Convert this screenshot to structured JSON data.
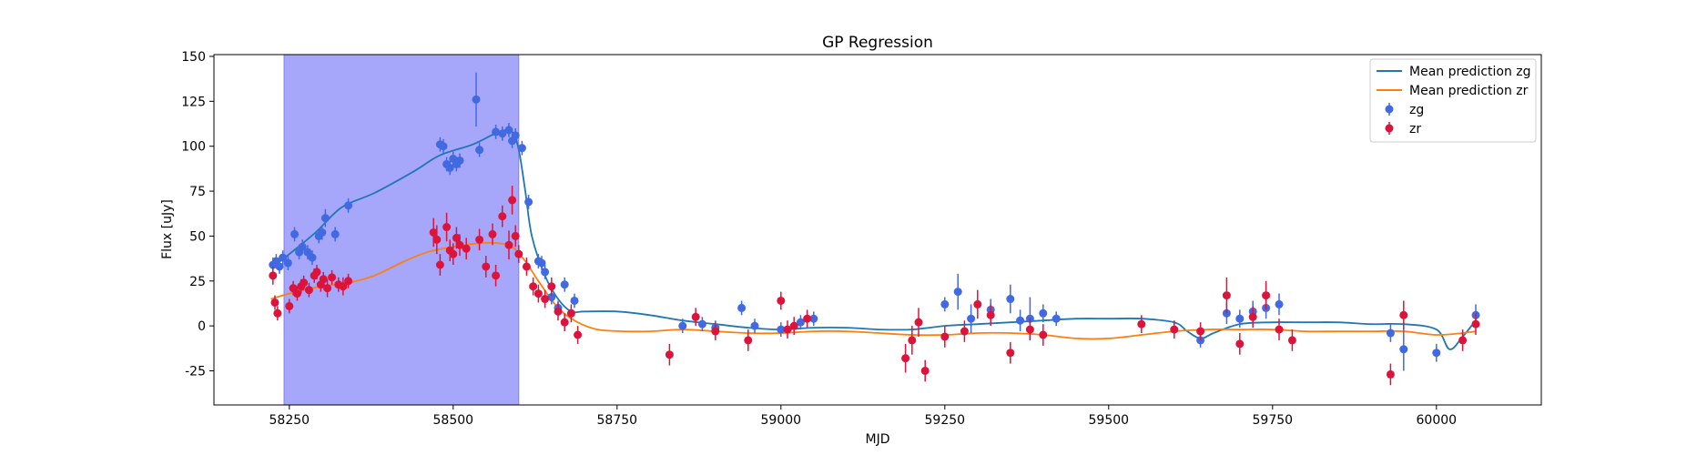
{
  "chart_data": {
    "type": "scatter",
    "title": "GP Regression",
    "xlabel": "MJD",
    "ylabel": "Flux [uJy]",
    "xlim": [
      58135,
      60160
    ],
    "ylim": [
      -44,
      151
    ],
    "xticks": [
      58250,
      58500,
      58750,
      59000,
      59250,
      59500,
      59750,
      60000
    ],
    "yticks": [
      -25,
      0,
      25,
      50,
      75,
      100,
      125,
      150
    ],
    "grid": false,
    "legend_position": "top-right",
    "highlight_span": {
      "x_start": 58242,
      "x_end": 58600,
      "color": "#a6a6fb"
    },
    "series": [
      {
        "name": "Mean prediction zg",
        "kind": "line",
        "color": "#1f77b4",
        "x": [
          58222,
          58250,
          58290,
          58330,
          58380,
          58440,
          58480,
          58530,
          58570,
          58590,
          58600,
          58610,
          58620,
          58640,
          58660,
          58680,
          58700,
          58750,
          58800,
          58850,
          58900,
          58950,
          59000,
          59050,
          59100,
          59150,
          59200,
          59250,
          59300,
          59350,
          59400,
          59450,
          59500,
          59550,
          59600,
          59620,
          59640,
          59660,
          59700,
          59750,
          59800,
          59850,
          59900,
          59950,
          60000,
          60020,
          60040,
          60060
        ],
        "values": [
          32,
          40,
          52,
          66,
          74,
          86,
          95,
          101,
          108,
          108,
          98,
          75,
          50,
          28,
          15,
          8,
          8,
          8,
          6,
          3,
          1,
          -1,
          -2,
          -1,
          -1,
          -2,
          -2,
          0,
          1,
          2,
          3,
          4,
          4,
          4,
          2,
          -3,
          -7,
          -4,
          1,
          2,
          2,
          2,
          1,
          1,
          -2,
          -13,
          -6,
          3
        ]
      },
      {
        "name": "Mean prediction zr",
        "kind": "line",
        "color": "#ff7f0e",
        "x": [
          58222,
          58260,
          58300,
          58340,
          58380,
          58420,
          58460,
          58500,
          58540,
          58570,
          58590,
          58610,
          58630,
          58660,
          58690,
          58720,
          58760,
          58800,
          58850,
          58900,
          58950,
          59000,
          59050,
          59100,
          59150,
          59200,
          59250,
          59300,
          59350,
          59400,
          59450,
          59500,
          59550,
          59600,
          59650,
          59700,
          59750,
          59800,
          59850,
          59900,
          59950,
          60000,
          60040,
          60060
        ],
        "values": [
          15,
          19,
          22,
          24,
          28,
          35,
          41,
          44,
          46,
          46,
          44,
          36,
          25,
          10,
          2,
          -2,
          -3,
          -3,
          -2,
          -3,
          -4,
          -4,
          -3,
          -3,
          -4,
          -5,
          -5,
          -4,
          -4,
          -5,
          -7,
          -7,
          -5,
          -3,
          -2,
          -2,
          -2,
          -3,
          -3,
          -3,
          -3,
          -5,
          -4,
          -3
        ]
      },
      {
        "name": "zg",
        "kind": "errorbar",
        "color": "#4169e1",
        "x": [
          58225,
          58230,
          58235,
          58240,
          58248,
          58258,
          58265,
          58270,
          58278,
          58285,
          58295,
          58300,
          58305,
          58320,
          58340,
          58480,
          58485,
          58490,
          58495,
          58500,
          58505,
          58510,
          58535,
          58540,
          58565,
          58575,
          58585,
          58590,
          58595,
          58605,
          58615,
          58630,
          58635,
          58640,
          58650,
          58660,
          58670,
          58685,
          58850,
          58880,
          58900,
          58940,
          58960,
          59000,
          59030,
          59050,
          59250,
          59270,
          59290,
          59320,
          59350,
          59365,
          59380,
          59400,
          59420,
          59640,
          59680,
          59700,
          59720,
          59740,
          59760,
          59930,
          59950,
          60000,
          60060
        ],
        "values": [
          34,
          36,
          33,
          38,
          35,
          51,
          41,
          44,
          41,
          38,
          50,
          52,
          60,
          51,
          67,
          101,
          100,
          90,
          88,
          93,
          90,
          92,
          126,
          98,
          108,
          107,
          109,
          103,
          106,
          99,
          69,
          36,
          35,
          30,
          16,
          10,
          23,
          14,
          0,
          1,
          -1,
          10,
          0,
          -2,
          2,
          4,
          12,
          19,
          4,
          9,
          15,
          3,
          4,
          7,
          4,
          -8,
          7,
          4,
          8,
          10,
          12,
          -4,
          -13,
          -15,
          6
        ],
        "errors": [
          4,
          4,
          4,
          4,
          4,
          4,
          4,
          4,
          4,
          4,
          4,
          4,
          5,
          4,
          4,
          4,
          4,
          4,
          4,
          4,
          4,
          4,
          15,
          4,
          4,
          4,
          4,
          4,
          4,
          4,
          4,
          4,
          4,
          4,
          4,
          4,
          4,
          4,
          4,
          4,
          4,
          4,
          4,
          4,
          4,
          4,
          4,
          10,
          8,
          6,
          8,
          6,
          12,
          5,
          4,
          4,
          6,
          5,
          6,
          6,
          6,
          5,
          12,
          5,
          6
        ]
      },
      {
        "name": "zr",
        "kind": "errorbar",
        "color": "#dc143c",
        "x": [
          58225,
          58228,
          58232,
          58250,
          58256,
          58262,
          58268,
          58272,
          58280,
          58288,
          58292,
          58298,
          58302,
          58308,
          58315,
          58325,
          58332,
          58340,
          58470,
          58475,
          58480,
          58490,
          58495,
          58500,
          58505,
          58510,
          58520,
          58540,
          58550,
          58560,
          58565,
          58575,
          58585,
          58590,
          58595,
          58600,
          58612,
          58622,
          58630,
          58640,
          58650,
          58660,
          58670,
          58680,
          58690,
          58830,
          58870,
          58900,
          58950,
          59000,
          59010,
          59020,
          59040,
          59190,
          59200,
          59210,
          59220,
          59250,
          59280,
          59300,
          59320,
          59350,
          59380,
          59400,
          59550,
          59600,
          59640,
          59680,
          59700,
          59720,
          59740,
          59760,
          59780,
          59930,
          59950,
          60040,
          60060
        ],
        "values": [
          28,
          13,
          7,
          11,
          21,
          18,
          22,
          24,
          20,
          28,
          30,
          23,
          26,
          21,
          27,
          23,
          22,
          25,
          52,
          48,
          34,
          55,
          42,
          40,
          49,
          45,
          43,
          48,
          33,
          51,
          28,
          61,
          45,
          70,
          50,
          40,
          33,
          22,
          18,
          15,
          22,
          8,
          2,
          7,
          -5,
          -16,
          5,
          -3,
          -8,
          14,
          -2,
          0,
          4,
          -18,
          -8,
          2,
          -25,
          -6,
          -3,
          12,
          6,
          -15,
          -2,
          -5,
          1,
          -2,
          -3,
          17,
          -10,
          5,
          17,
          -2,
          -8,
          -27,
          6,
          -8,
          1
        ],
        "errors": [
          5,
          4,
          4,
          4,
          4,
          4,
          4,
          4,
          4,
          4,
          4,
          4,
          4,
          5,
          4,
          4,
          5,
          4,
          8,
          8,
          6,
          8,
          6,
          6,
          6,
          6,
          6,
          6,
          6,
          6,
          6,
          6,
          8,
          8,
          6,
          5,
          5,
          5,
          5,
          5,
          5,
          5,
          5,
          5,
          5,
          6,
          5,
          5,
          6,
          5,
          5,
          5,
          5,
          8,
          8,
          8,
          6,
          6,
          6,
          8,
          6,
          6,
          6,
          6,
          5,
          5,
          5,
          10,
          6,
          6,
          8,
          6,
          6,
          6,
          8,
          6,
          6
        ]
      }
    ]
  }
}
